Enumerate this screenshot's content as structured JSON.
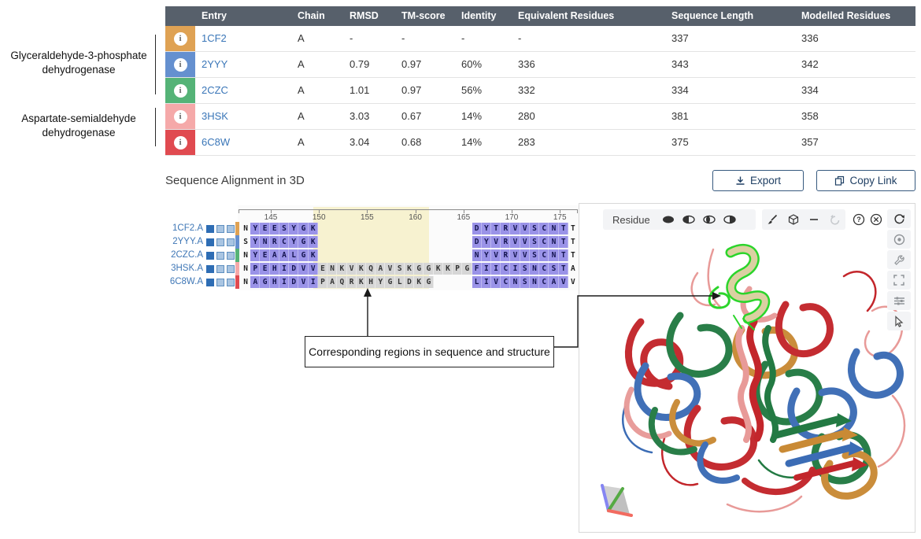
{
  "colors": {
    "header_bg": "#57606B",
    "link": "#3A76B8",
    "purple_cell": "#9A93E8",
    "gray_cell": "#D6D6D6",
    "yellow_band": "#F7F2D0",
    "entry_1cf2": "#DFA254",
    "entry_2yyy": "#6590CF",
    "entry_2czc": "#55B377",
    "entry_3hsk": "#F5A9A9",
    "entry_6c8w": "#E04A50",
    "mol_red": "#C3262B",
    "mol_green": "#237A43",
    "mol_blue": "#3B6CB5",
    "mol_orange": "#C98A35",
    "mol_salmon": "#E89A98",
    "mol_highlight": "#2BD52B",
    "mol_tan": "#DBD0A2"
  },
  "table": {
    "headers": [
      "Entry",
      "Chain",
      "RMSD",
      "TM-score",
      "Identity",
      "Equivalent Residues",
      "Sequence Length",
      "Modelled Residues"
    ],
    "rows": [
      {
        "entry": "1CF2",
        "chain": "A",
        "rmsd": "-",
        "tm_score": "-",
        "identity": "-",
        "equivalent_residues": "-",
        "sequence_length": "337",
        "modelled_residues": "336",
        "color_key": "entry_1cf2"
      },
      {
        "entry": "2YYY",
        "chain": "A",
        "rmsd": "0.79",
        "tm_score": "0.97",
        "identity": "60%",
        "equivalent_residues": "336",
        "sequence_length": "343",
        "modelled_residues": "342",
        "color_key": "entry_2yyy"
      },
      {
        "entry": "2CZC",
        "chain": "A",
        "rmsd": "1.01",
        "tm_score": "0.97",
        "identity": "56%",
        "equivalent_residues": "332",
        "sequence_length": "334",
        "modelled_residues": "334",
        "color_key": "entry_2czc"
      },
      {
        "entry": "3HSK",
        "chain": "A",
        "rmsd": "3.03",
        "tm_score": "0.67",
        "identity": "14%",
        "equivalent_residues": "280",
        "sequence_length": "381",
        "modelled_residues": "358",
        "color_key": "entry_3hsk"
      },
      {
        "entry": "6C8W",
        "chain": "A",
        "rmsd": "3.04",
        "tm_score": "0.68",
        "identity": "14%",
        "equivalent_residues": "283",
        "sequence_length": "375",
        "modelled_residues": "357",
        "color_key": "entry_6c8w"
      }
    ]
  },
  "group_labels": [
    {
      "text": "Glyceraldehyde-3-phosphate dehydrogenase"
    },
    {
      "text": "Aspartate-semialdehyde dehydrogenase"
    }
  ],
  "section": {
    "title": "Sequence Alignment in 3D"
  },
  "buttons": {
    "export_label": "Export",
    "copy_link_label": "Copy Link"
  },
  "alignment": {
    "ruler_ticks": [
      145,
      150,
      155,
      160,
      165,
      170,
      175
    ],
    "rows": [
      {
        "label": "1CF2.A",
        "color_key": "entry_1cf2",
        "seq": "NYEESYGK----------------DYTRVVSCNTT",
        "mask": "wppppppp----------------ppppppppppw"
      },
      {
        "label": "2YYY.A",
        "color_key": "entry_2yyy",
        "seq": "SYNRCYGK----------------DYVRVVSCNTT",
        "mask": "wppppppp----------------ppppppppppw"
      },
      {
        "label": "2CZC.A",
        "color_key": "entry_2czc",
        "seq": "NYEAALGK----------------NYVRVVSCNTT",
        "mask": "wppppppp----------------ppppppppppw"
      },
      {
        "label": "3HSK.A",
        "color_key": "entry_3hsk",
        "seq": "NPEHIDVVENKVKQAVSKGGKKPGFIICISNCSTA",
        "mask": "wpppppppggggggggggggggggppppppppppw"
      },
      {
        "label": "6C8W.A",
        "color_key": "entry_6c8w",
        "seq": "NAGHIDVIPAQRKHYGLDKG----LIVCNSNCAVV",
        "mask": "wpppppppgggggggggggg----ppppppppppw"
      }
    ]
  },
  "annotation": {
    "text": "Corresponding regions in sequence and structure"
  },
  "viewer": {
    "granularity_label": "Residue",
    "selection_icons": [
      "selection-whole",
      "selection-start",
      "selection-middle",
      "selection-end"
    ],
    "tool_icons": [
      "brush",
      "theme-cube",
      "subtract",
      "undo"
    ],
    "help_icons": [
      "help",
      "close"
    ],
    "side_icons": [
      "reset-camera",
      "screenshot",
      "controls-wrench",
      "fullscreen",
      "settings-sliders",
      "selection-cursor"
    ]
  }
}
